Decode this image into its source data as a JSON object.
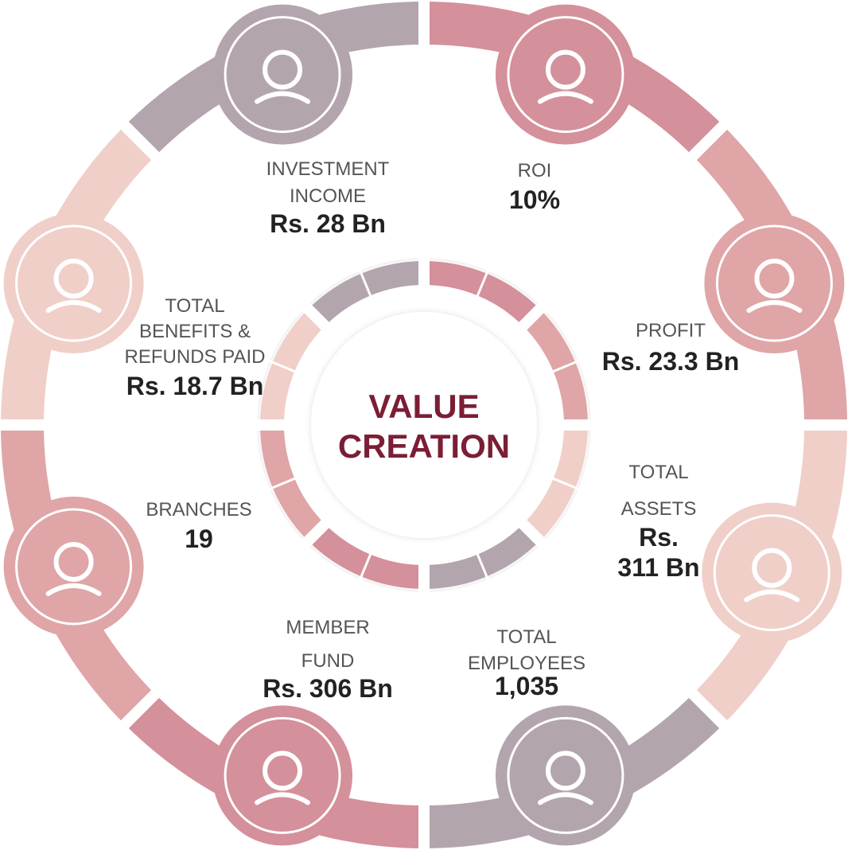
{
  "center_title": [
    "VALUE",
    "CREATION"
  ],
  "segments": [
    {
      "label": [
        "ROI"
      ],
      "value": [
        "10%"
      ]
    },
    {
      "label": [
        "PROFIT"
      ],
      "value": [
        "Rs. 23.3 Bn"
      ]
    },
    {
      "label": [
        "TOTAL",
        "ASSETS"
      ],
      "value": [
        "Rs.",
        "311 Bn"
      ]
    },
    {
      "label": [
        "TOTAL",
        "EMPLOYEES"
      ],
      "value": [
        "1,035"
      ]
    },
    {
      "label": [
        "MEMBER",
        "FUND"
      ],
      "value": [
        "Rs. 306 Bn"
      ]
    },
    {
      "label": [
        "BRANCHES"
      ],
      "value": [
        "19"
      ]
    },
    {
      "label": [
        "TOTAL",
        "BENEFITS &",
        "REFUNDS PAID"
      ],
      "value": [
        "Rs. 18.7 Bn"
      ]
    },
    {
      "label": [
        "INVESTMENT",
        "INCOME"
      ],
      "value": [
        "Rs. 28 Bn"
      ]
    }
  ]
}
